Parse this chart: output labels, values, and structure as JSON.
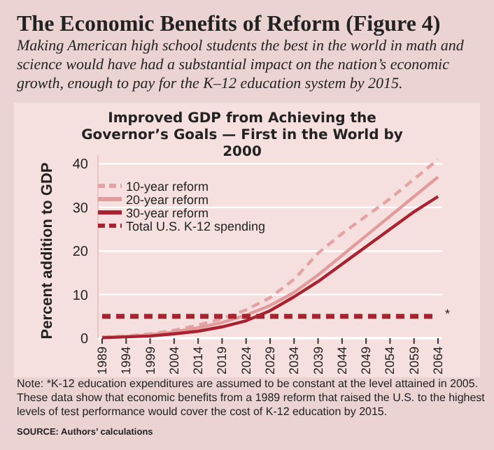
{
  "chart_data": {
    "type": "line",
    "title": "The Economic Benefits of Reform (Figure 4)",
    "subtitle": "Making American high school students the best in the world in math and science would have had a substantial impact on the nation’s economic growth, enough to pay for the K–12 education system by 2015.",
    "ylabel": "Percent addition to GDP",
    "categories": [
      "1989",
      "1994",
      "1999",
      "2004",
      "2014",
      "2019",
      "2024",
      "2029",
      "2034",
      "2039",
      "2044",
      "2049",
      "2054",
      "2059",
      "2064"
    ],
    "series": [
      {
        "name": "10-year reform",
        "color": "#e3a3a3",
        "line_style": "dashed",
        "values": [
          0.3,
          0.5,
          1,
          1.8,
          3,
          4.5,
          6.5,
          9.3,
          13.5,
          19.5,
          24,
          28,
          32,
          36.5,
          41
        ]
      },
      {
        "name": "20-year reform",
        "color": "#e39a9a",
        "line_style": "solid",
        "values": [
          0.2,
          0.4,
          0.8,
          1.4,
          2.4,
          3.6,
          5.3,
          7.5,
          10.5,
          14.5,
          19,
          23.5,
          28,
          32.5,
          37
        ]
      },
      {
        "name": "30-year reform",
        "color": "#a8232f",
        "line_style": "solid",
        "values": [
          0.1,
          0.3,
          0.5,
          1,
          1.6,
          2.6,
          4,
          6.3,
          9.5,
          13,
          17,
          21,
          25,
          29,
          32.5
        ]
      },
      {
        "name": "Total U.S. K-12 spending",
        "color": "#a8232f",
        "line_style": "dashed",
        "values": [
          5,
          5,
          5,
          5,
          5,
          5,
          5,
          5,
          5,
          5,
          5,
          5,
          5,
          5,
          5
        ]
      }
    ],
    "ylim": [
      0,
      42
    ],
    "yticks": [
      0,
      10,
      20,
      30,
      40
    ],
    "grid": "y",
    "legend": "top left",
    "annotations": [
      "Improved GDP from Achieving the Governor’s Goals — First in the World by 2000",
      {
        "text": "*",
        "x": "2064",
        "y": 5
      },
      "Note: *K-12 education expenditures are assumed to be constant at the level attained in 2005. These data show that economic benefits from a 1989 reform that raised the U.S. to the highest levels of test performance would cover the cost of K-12 education by 2015.",
      "SOURCE: Authors’ calculations"
    ]
  }
}
